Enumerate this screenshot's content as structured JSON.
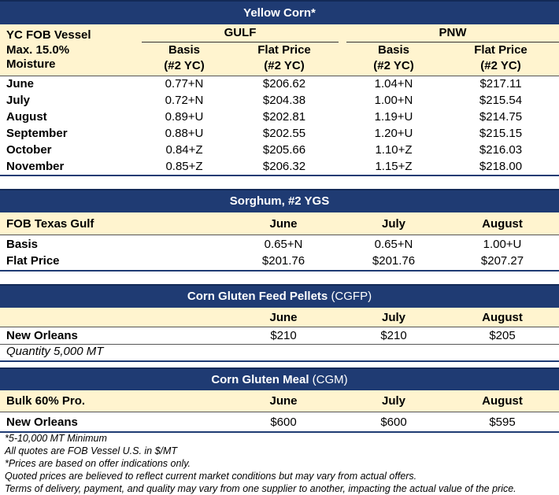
{
  "yellow_corn": {
    "title": "Yellow Corn*",
    "header_label": [
      "YC FOB Vessel",
      "Max. 15.0%",
      "Moisture"
    ],
    "groups": [
      "GULF",
      "PNW"
    ],
    "columns": [
      {
        "name": "Basis",
        "sub": "(#2 YC)"
      },
      {
        "name": "Flat Price",
        "sub": "(#2 YC)"
      },
      {
        "name": "Basis",
        "sub": "(#2 YC)"
      },
      {
        "name": "Flat Price",
        "sub": "(#2 YC)"
      }
    ],
    "rows": [
      [
        "June",
        "0.77+N",
        "$206.62",
        "1.04+N",
        "$217.11"
      ],
      [
        "July",
        "0.72+N",
        "$204.38",
        "1.00+N",
        "$215.54"
      ],
      [
        "August",
        "0.89+U",
        "$202.81",
        "1.19+U",
        "$214.75"
      ],
      [
        "September",
        "0.88+U",
        "$202.55",
        "1.20+U",
        "$215.15"
      ],
      [
        "October",
        "0.84+Z",
        "$205.66",
        "1.10+Z",
        "$216.03"
      ],
      [
        "November",
        "0.85+Z",
        "$206.32",
        "1.15+Z",
        "$218.00"
      ]
    ]
  },
  "sorghum": {
    "title": "Sorghum,  #2 YGS",
    "header_label": "FOB Texas Gulf",
    "columns": [
      "June",
      "July",
      "August"
    ],
    "rows": [
      [
        "Basis",
        "0.65+N",
        "0.65+N",
        "1.00+U"
      ],
      [
        "Flat Price",
        "$201.76",
        "$201.76",
        "$207.27"
      ]
    ]
  },
  "cgfp": {
    "title": "Corn Gluten Feed Pellets",
    "title_note": "(CGFP)",
    "columns": [
      "June",
      "July",
      "August"
    ],
    "rows": [
      [
        "New Orleans",
        "$210",
        "$210",
        "$205"
      ]
    ],
    "note": "Quantity 5,000 MT"
  },
  "cgm": {
    "title": "Corn Gluten Meal",
    "title_note": "(CGM)",
    "header_label": "Bulk 60% Pro.",
    "columns": [
      "June",
      "July",
      "August"
    ],
    "rows": [
      [
        "New Orleans",
        "$600",
        "$600",
        "$595"
      ]
    ]
  },
  "footnotes": [
    "*5-10,000 MT Minimum",
    "All quotes are FOB Vessel U.S. in $/MT",
    "*Prices are based on offer indications only.",
    "Quoted prices are believed to reflect current market conditions but may vary from actual offers.",
    "Terms of delivery, payment, and quality may vary from one supplier to another, impacting the actual value of the price."
  ]
}
